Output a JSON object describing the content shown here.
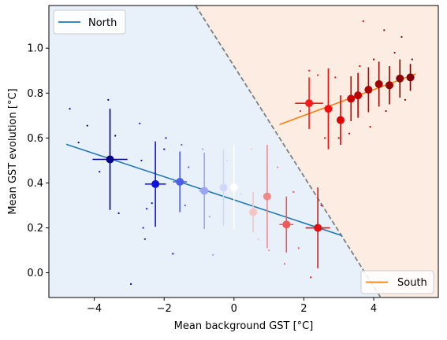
{
  "chart_data": {
    "type": "scatter",
    "xlabel": "Mean background GST [°C]",
    "ylabel": "Mean GST evolution [°C]",
    "xlim": [
      -5.3,
      5.85
    ],
    "ylim": [
      -0.11,
      1.19
    ],
    "xticks": [
      -4,
      -2,
      0,
      2,
      4
    ],
    "yticks": [
      0.0,
      0.2,
      0.4,
      0.6,
      0.8,
      1.0
    ],
    "xtick_labels": [
      "−4",
      "−2",
      "0",
      "2",
      "4"
    ],
    "ytick_labels": [
      "0.0",
      "0.2",
      "0.4",
      "0.6",
      "0.8",
      "1.0"
    ],
    "grid": false,
    "regions": {
      "north_color": "#e8f1fa",
      "south_color": "#fdece1",
      "boundary": [
        [
          -1.1,
          1.19
        ],
        [
          4.2,
          -0.11
        ]
      ],
      "boundary_color": "#808080"
    },
    "fits": [
      {
        "name": "North",
        "color": "#1f77b4",
        "x": [
          -4.8,
          3.1
        ],
        "y": [
          0.572,
          0.165
        ]
      },
      {
        "name": "South",
        "color": "#ff7f0e",
        "x": [
          1.3,
          5.2
        ],
        "y": [
          0.66,
          0.885
        ]
      }
    ],
    "binned_points": [
      {
        "x": -3.55,
        "y": 0.505,
        "xerr": 0.5,
        "yerr": 0.225,
        "color": "#00008b"
      },
      {
        "x": -2.25,
        "y": 0.395,
        "xerr": 0.3,
        "yerr": 0.19,
        "color": "#1010e0"
      },
      {
        "x": -1.55,
        "y": 0.405,
        "xerr": 0.2,
        "yerr": 0.135,
        "color": "#4b5fe8"
      },
      {
        "x": -0.85,
        "y": 0.365,
        "xerr": 0.15,
        "yerr": 0.17,
        "color": "#9aa4f6"
      },
      {
        "x": -0.3,
        "y": 0.38,
        "xerr": 0.1,
        "yerr": 0.17,
        "color": "#d2d6fb"
      },
      {
        "x": 0.0,
        "y": 0.38,
        "xerr": 0.05,
        "yerr": 0.19,
        "color": "#ffffff"
      },
      {
        "x": 0.55,
        "y": 0.27,
        "xerr": 0.12,
        "yerr": 0.09,
        "color": "#f7c4c4"
      },
      {
        "x": 0.95,
        "y": 0.34,
        "xerr": 0.1,
        "yerr": 0.23,
        "color": "#f08a8a"
      },
      {
        "x": 1.5,
        "y": 0.215,
        "xerr": 0.2,
        "yerr": 0.125,
        "color": "#f25858"
      },
      {
        "x": 2.4,
        "y": 0.2,
        "xerr": 0.35,
        "yerr": 0.18,
        "color": "#e31010"
      },
      {
        "x": 2.15,
        "y": 0.755,
        "xerr": 0.4,
        "yerr": 0.115,
        "color": "#ff1a1a"
      },
      {
        "x": 2.7,
        "y": 0.73,
        "xerr": 0.1,
        "yerr": 0.18,
        "color": "#f01010"
      },
      {
        "x": 3.05,
        "y": 0.68,
        "xerr": 0.08,
        "yerr": 0.11,
        "color": "#e00000"
      },
      {
        "x": 3.35,
        "y": 0.775,
        "xerr": 0.08,
        "yerr": 0.1,
        "color": "#cc0000"
      },
      {
        "x": 3.55,
        "y": 0.79,
        "xerr": 0.06,
        "yerr": 0.1,
        "color": "#c00000"
      },
      {
        "x": 3.85,
        "y": 0.815,
        "xerr": 0.05,
        "yerr": 0.1,
        "color": "#b00000"
      },
      {
        "x": 4.15,
        "y": 0.84,
        "xerr": 0.05,
        "yerr": 0.1,
        "color": "#a00000"
      },
      {
        "x": 4.45,
        "y": 0.835,
        "xerr": 0.05,
        "yerr": 0.085,
        "color": "#950000"
      },
      {
        "x": 4.75,
        "y": 0.865,
        "xerr": 0.05,
        "yerr": 0.085,
        "color": "#8b0000"
      },
      {
        "x": 5.05,
        "y": 0.87,
        "xerr": 0.05,
        "yerr": 0.06,
        "color": "#800000"
      }
    ],
    "raw_points": [
      {
        "x": -4.7,
        "y": 0.73,
        "color": "#00008b"
      },
      {
        "x": -4.2,
        "y": 0.655,
        "color": "#00008b"
      },
      {
        "x": -4.45,
        "y": 0.58,
        "color": "#00008b"
      },
      {
        "x": -3.85,
        "y": 0.45,
        "color": "#00008b"
      },
      {
        "x": -3.6,
        "y": 0.77,
        "color": "#00008b"
      },
      {
        "x": -3.4,
        "y": 0.61,
        "color": "#00008b"
      },
      {
        "x": -3.3,
        "y": 0.265,
        "color": "#00008b"
      },
      {
        "x": -2.95,
        "y": -0.05,
        "color": "#00008b"
      },
      {
        "x": -2.7,
        "y": 0.665,
        "color": "#1010e0"
      },
      {
        "x": -2.65,
        "y": 0.5,
        "color": "#1010e0"
      },
      {
        "x": -2.5,
        "y": 0.285,
        "color": "#1010e0"
      },
      {
        "x": -2.35,
        "y": 0.31,
        "color": "#1010e0"
      },
      {
        "x": -2.6,
        "y": 0.2,
        "color": "#1010e0"
      },
      {
        "x": -2.55,
        "y": 0.15,
        "color": "#1010e0"
      },
      {
        "x": -2.0,
        "y": 0.55,
        "color": "#1010e0"
      },
      {
        "x": -1.95,
        "y": 0.6,
        "color": "#1010e0"
      },
      {
        "x": -1.75,
        "y": 0.085,
        "color": "#1010e0"
      },
      {
        "x": -1.5,
        "y": 0.57,
        "color": "#4b5fe8"
      },
      {
        "x": -1.4,
        "y": 0.3,
        "color": "#4b5fe8"
      },
      {
        "x": -1.3,
        "y": 0.47,
        "color": "#4b5fe8"
      },
      {
        "x": -0.9,
        "y": 0.55,
        "color": "#9aa4f6"
      },
      {
        "x": -0.7,
        "y": 0.25,
        "color": "#9aa4f6"
      },
      {
        "x": -0.6,
        "y": 0.08,
        "color": "#9aa4f6"
      },
      {
        "x": -0.2,
        "y": 0.5,
        "color": "#d2d6fb"
      },
      {
        "x": 0.2,
        "y": 0.35,
        "color": "#d2d6fb"
      },
      {
        "x": 0.5,
        "y": 0.55,
        "color": "#f7c4c4"
      },
      {
        "x": 0.7,
        "y": 0.15,
        "color": "#f7c4c4"
      },
      {
        "x": 1.0,
        "y": 0.1,
        "color": "#f08a8a"
      },
      {
        "x": 1.25,
        "y": 0.47,
        "color": "#f08a8a"
      },
      {
        "x": 1.45,
        "y": 0.04,
        "color": "#f25858"
      },
      {
        "x": 1.7,
        "y": 0.36,
        "color": "#f25858"
      },
      {
        "x": 1.85,
        "y": 0.11,
        "color": "#f25858"
      },
      {
        "x": 2.2,
        "y": -0.02,
        "color": "#e31010"
      },
      {
        "x": 2.5,
        "y": 0.3,
        "color": "#e31010"
      },
      {
        "x": 2.15,
        "y": 0.9,
        "color": "#ff1a1a"
      },
      {
        "x": 1.9,
        "y": 0.72,
        "color": "#ff1a1a"
      },
      {
        "x": 2.4,
        "y": 0.88,
        "color": "#ff1a1a"
      },
      {
        "x": 2.6,
        "y": 0.6,
        "color": "#f01010"
      },
      {
        "x": 2.9,
        "y": 0.87,
        "color": "#f01010"
      },
      {
        "x": 3.0,
        "y": 0.6,
        "color": "#e00000"
      },
      {
        "x": 3.3,
        "y": 0.62,
        "color": "#cc0000"
      },
      {
        "x": 3.6,
        "y": 0.92,
        "color": "#c00000"
      },
      {
        "x": 3.7,
        "y": 1.12,
        "color": "#c00000"
      },
      {
        "x": 3.9,
        "y": 0.65,
        "color": "#b00000"
      },
      {
        "x": 4.0,
        "y": 0.95,
        "color": "#b00000"
      },
      {
        "x": 4.3,
        "y": 1.08,
        "color": "#a00000"
      },
      {
        "x": 4.35,
        "y": 0.72,
        "color": "#a00000"
      },
      {
        "x": 4.6,
        "y": 0.98,
        "color": "#950000"
      },
      {
        "x": 4.8,
        "y": 1.05,
        "color": "#8b0000"
      },
      {
        "x": 4.9,
        "y": 0.77,
        "color": "#8b0000"
      },
      {
        "x": 5.1,
        "y": 0.95,
        "color": "#800000"
      }
    ],
    "legends": [
      {
        "entries": [
          {
            "label": "North",
            "color": "#1f77b4"
          }
        ],
        "placement": "upper-left"
      },
      {
        "entries": [
          {
            "label": "South",
            "color": "#ff7f0e"
          }
        ],
        "placement": "lower-right"
      }
    ]
  }
}
